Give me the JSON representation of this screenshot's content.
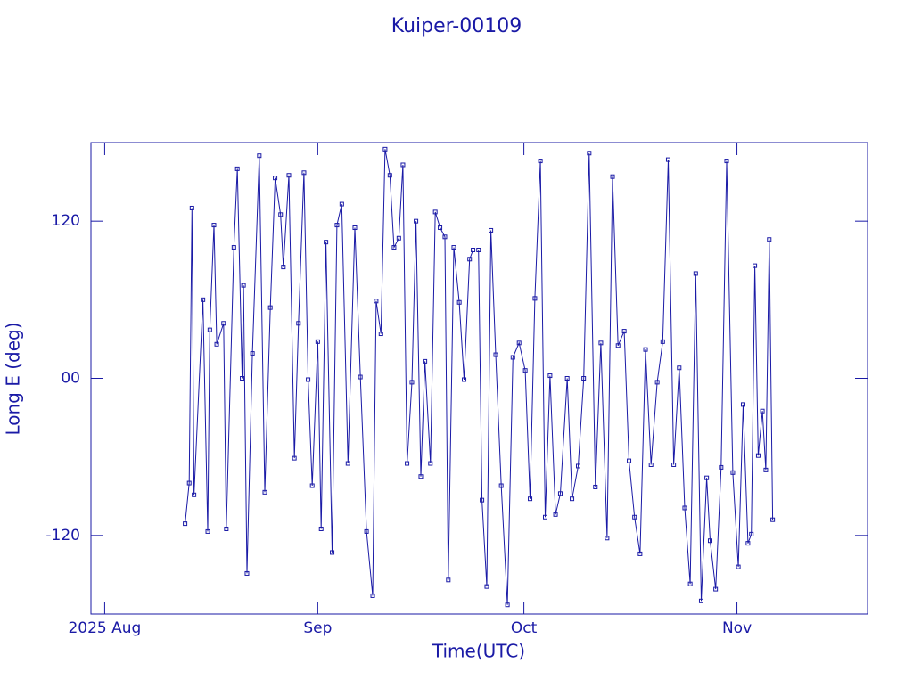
{
  "chart_data": {
    "type": "line",
    "title": "Kuiper-00109",
    "xlabel": "Time(UTC)",
    "ylabel": "Long E (deg)",
    "color": "#1a1aa6",
    "xlim": [
      -2,
      111
    ],
    "xticks": [
      {
        "value": 0,
        "label": "2025 Aug"
      },
      {
        "value": 31,
        "label": "Sep"
      },
      {
        "value": 61,
        "label": "Oct"
      },
      {
        "value": 92,
        "label": "Nov"
      }
    ],
    "ylim": [
      -180,
      180
    ],
    "yticks": [
      -120,
      {
        "value": 0,
        "label": "00"
      },
      120
    ],
    "x": [
      11.7,
      12.3,
      12.7,
      13.0,
      14.3,
      15.0,
      15.3,
      15.9,
      16.3,
      17.3,
      17.7,
      18.8,
      19.3,
      20.0,
      20.2,
      20.7,
      21.5,
      22.5,
      23.3,
      24.1,
      24.8,
      25.6,
      26.0,
      26.8,
      27.6,
      28.2,
      29.0,
      29.6,
      30.2,
      31.0,
      31.5,
      32.2,
      33.1,
      33.8,
      34.5,
      35.4,
      36.4,
      37.2,
      38.1,
      39.0,
      39.5,
      40.2,
      40.8,
      41.5,
      42.1,
      42.8,
      43.4,
      44.0,
      44.7,
      45.3,
      46.0,
      46.6,
      47.4,
      48.1,
      48.8,
      49.5,
      50.0,
      50.8,
      51.6,
      52.3,
      53.1,
      53.6,
      54.4,
      54.9,
      55.6,
      56.2,
      56.9,
      57.7,
      58.6,
      59.4,
      60.3,
      61.2,
      61.9,
      62.6,
      63.4,
      64.1,
      64.8,
      65.6,
      66.3,
      67.3,
      68.0,
      68.9,
      69.7,
      70.5,
      71.4,
      72.2,
      73.1,
      73.9,
      74.7,
      75.6,
      76.3,
      77.1,
      77.9,
      78.7,
      79.5,
      80.4,
      81.2,
      82.0,
      82.8,
      83.6,
      84.4,
      85.2,
      86.0,
      86.8,
      87.6,
      88.1,
      88.9,
      89.7,
      90.5,
      91.4,
      92.2,
      92.9,
      93.6,
      94.1,
      94.6,
      95.1,
      95.7,
      96.2,
      96.7,
      97.2
    ],
    "values": [
      -111,
      -80,
      130,
      -89,
      60,
      -117,
      37,
      117,
      26,
      42,
      -115,
      100,
      160,
      0,
      71,
      -149,
      19,
      170,
      -87,
      54,
      153,
      125,
      85,
      155,
      -61,
      42,
      157,
      -1,
      -82,
      28,
      -115,
      104,
      -133,
      117,
      133,
      -65,
      115,
      1,
      -117,
      -166,
      59,
      34,
      175,
      155,
      100,
      107,
      163,
      -65,
      -3,
      120,
      -75,
      13,
      -65,
      127,
      115,
      108,
      -154,
      100,
      58,
      -1,
      91,
      98,
      98,
      -93,
      -159,
      113,
      18,
      -82,
      -173,
      16,
      27,
      6,
      -92,
      61,
      166,
      -106,
      2,
      -104,
      -88,
      0,
      -92,
      -67,
      0,
      172,
      -83,
      27,
      -122,
      154,
      25,
      36,
      -63,
      -106,
      -134,
      22,
      -66,
      -3,
      28,
      167,
      -66,
      8,
      -99,
      -157,
      80,
      -170,
      -76,
      -124,
      -161,
      -68,
      166,
      -72,
      -144,
      -20,
      -126,
      -119,
      86,
      -59,
      -25,
      -70,
      106,
      -108
    ]
  }
}
